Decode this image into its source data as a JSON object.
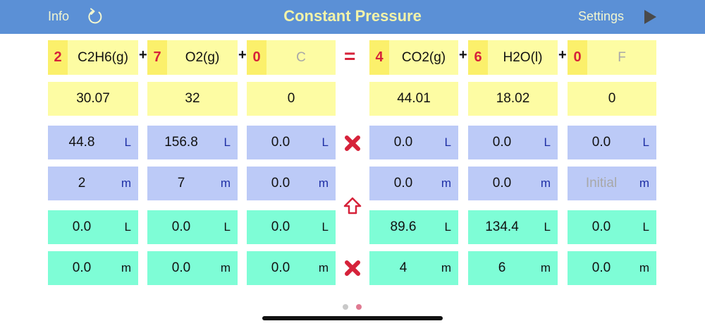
{
  "header": {
    "info_label": "Info",
    "refresh_icon": "refresh-icon",
    "title": "Constant Pressure",
    "settings_label": "Settings",
    "play_icon": "play-icon"
  },
  "equation": {
    "equals": "=",
    "plus": "+",
    "reactants": [
      {
        "coef": "2",
        "formula": "C2H6(g)",
        "molar_mass": "30.07",
        "initial_volume": "44.8",
        "initial_moles": "2",
        "final_volume": "0.0",
        "final_moles": "0.0"
      },
      {
        "coef": "7",
        "formula": "O2(g)",
        "molar_mass": "32",
        "initial_volume": "156.8",
        "initial_moles": "7",
        "final_volume": "0.0",
        "final_moles": "0.0"
      },
      {
        "coef": "0",
        "formula": "C",
        "molar_mass": "0",
        "initial_volume": "0.0",
        "initial_moles": "0.0",
        "final_volume": "0.0",
        "final_moles": "0.0"
      }
    ],
    "products": [
      {
        "coef": "4",
        "formula": "CO2(g)",
        "molar_mass": "44.01",
        "initial_volume": "0.0",
        "initial_moles": "0.0",
        "final_volume": "89.6",
        "final_moles": "4"
      },
      {
        "coef": "6",
        "formula": "H2O(l)",
        "molar_mass": "18.02",
        "initial_volume": "0.0",
        "initial_moles": "0.0",
        "final_volume": "134.4",
        "final_moles": "6"
      },
      {
        "coef": "0",
        "formula": "F",
        "molar_mass": "0",
        "initial_volume": "0.0",
        "initial_moles": "Initial",
        "final_volume": "0.0",
        "final_moles": "0.0"
      }
    ]
  },
  "units": {
    "liters": "L",
    "moles": "m"
  },
  "middle_icons": {
    "clear_initial": "x-icon",
    "transfer": "up-arrow-icon",
    "clear_final": "x-icon"
  },
  "colors": {
    "header": "#5b90d6",
    "yellow": "#fdfca3",
    "coef": "#fbf06b",
    "red": "#d6223a",
    "blue": "#bccaf7",
    "green": "#7efdd6",
    "unit_blue": "#1e2fa5"
  },
  "page_indicator": {
    "pages": 2,
    "current": 2
  }
}
